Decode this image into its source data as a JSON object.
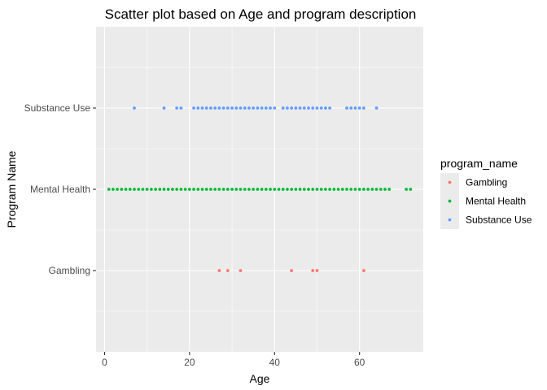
{
  "chart_data": {
    "type": "scatter",
    "title": "Scatter plot based on Age and program description",
    "xlabel": "Age",
    "ylabel": "Program Name",
    "xlim": [
      -2,
      75
    ],
    "x_ticks": [
      0,
      20,
      40,
      60
    ],
    "categories": [
      "Gambling",
      "Mental Health",
      "Substance Use"
    ],
    "grid": true,
    "legend_position": "right",
    "legend_title": "program_name",
    "series": [
      {
        "name": "Gambling",
        "color": "#F8766D",
        "category": "Gambling",
        "x": [
          27,
          29,
          32,
          44,
          49,
          50,
          61
        ]
      },
      {
        "name": "Mental Health",
        "color": "#00BA38",
        "category": "Mental Health",
        "x": [
          1,
          2,
          3,
          4,
          5,
          6,
          7,
          8,
          9,
          10,
          11,
          12,
          13,
          14,
          15,
          16,
          17,
          18,
          19,
          20,
          21,
          22,
          23,
          24,
          25,
          26,
          27,
          28,
          29,
          30,
          31,
          32,
          33,
          34,
          35,
          36,
          37,
          38,
          39,
          40,
          41,
          42,
          43,
          44,
          45,
          46,
          47,
          48,
          49,
          50,
          51,
          52,
          53,
          54,
          55,
          56,
          57,
          58,
          59,
          60,
          61,
          62,
          63,
          64,
          65,
          66,
          67,
          71,
          72
        ]
      },
      {
        "name": "Substance Use",
        "color": "#619CFF",
        "category": "Substance Use",
        "x": [
          7,
          14,
          17,
          18,
          21,
          22,
          23,
          24,
          25,
          26,
          27,
          28,
          29,
          30,
          31,
          32,
          33,
          34,
          35,
          36,
          37,
          38,
          39,
          40,
          42,
          43,
          44,
          45,
          46,
          47,
          48,
          49,
          50,
          51,
          52,
          53,
          57,
          58,
          59,
          60,
          61,
          64
        ]
      }
    ]
  }
}
